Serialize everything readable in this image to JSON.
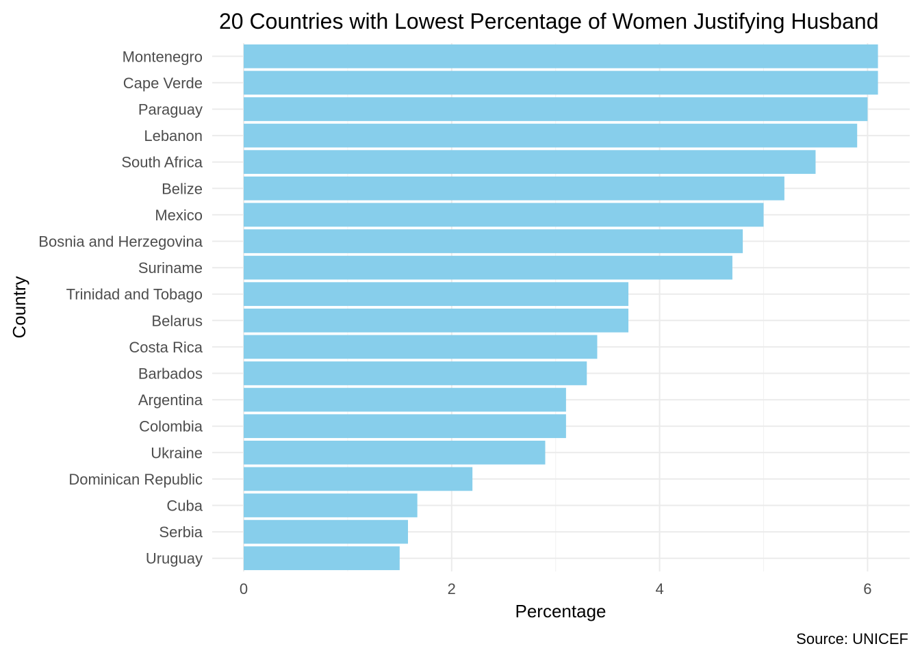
{
  "chart_data": {
    "type": "bar",
    "orientation": "horizontal",
    "title": "20 Countries with Lowest Percentage of Women Justifying Husband",
    "xlabel": "Percentage",
    "ylabel": "Country",
    "caption": "Source: UNICEF",
    "xlim": [
      0,
      6.4
    ],
    "xticks": [
      0,
      2,
      4,
      6
    ],
    "grid": true,
    "bar_color": "#87CEEB",
    "categories": [
      "Montenegro",
      "Cape Verde",
      "Paraguay",
      "Lebanon",
      "South Africa",
      "Belize",
      "Mexico",
      "Bosnia and Herzegovina",
      "Suriname",
      "Trinidad and Tobago",
      "Belarus",
      "Costa Rica",
      "Barbados",
      "Argentina",
      "Colombia",
      "Ukraine",
      "Dominican Republic",
      "Cuba",
      "Serbia",
      "Uruguay"
    ],
    "values": [
      6.1,
      6.1,
      6.0,
      5.9,
      5.5,
      5.2,
      5.0,
      4.8,
      4.7,
      3.7,
      3.7,
      3.4,
      3.3,
      3.1,
      3.1,
      2.9,
      2.2,
      1.67,
      1.58,
      1.5
    ]
  }
}
